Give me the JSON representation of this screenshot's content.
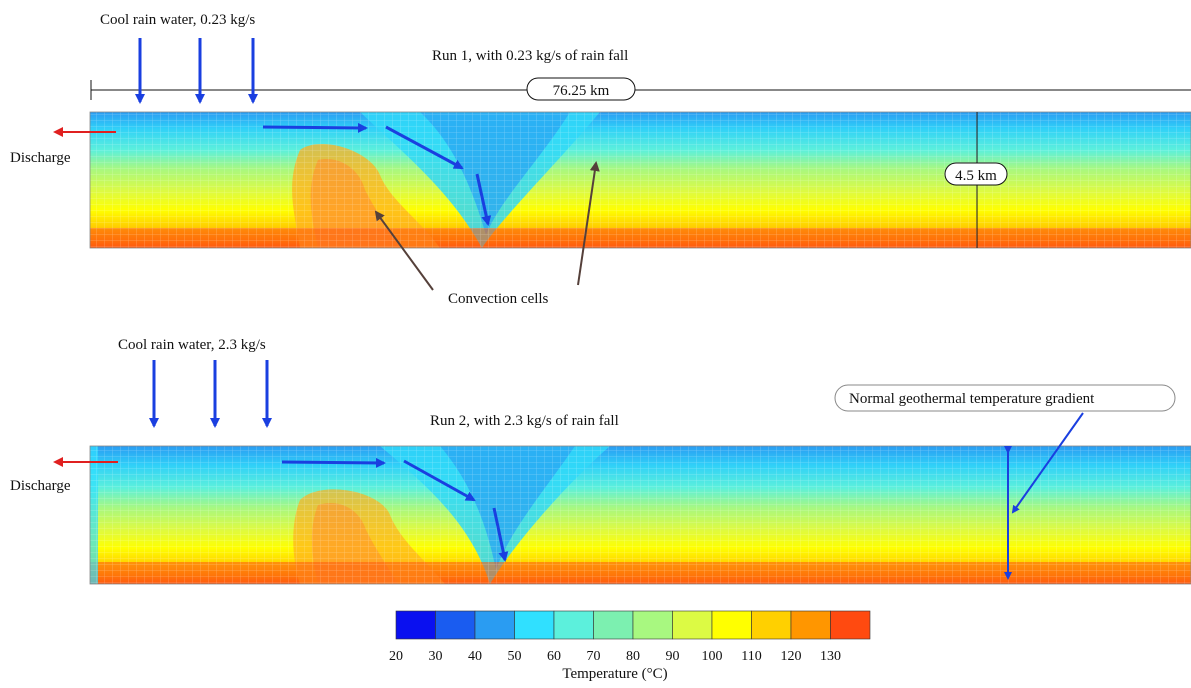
{
  "run1": {
    "title": "Run 1, with 0.23 kg/s of rain fall",
    "rain_label": "Cool rain water, 0.23 kg/s",
    "discharge_label": "Discharge",
    "width_label": "76.25 km",
    "depth_label": "4.5 km",
    "annotation": "Convection cells"
  },
  "run2": {
    "title": "Run 2, with 2.3 kg/s of rain fall",
    "rain_label": "Cool rain water, 2.3 kg/s",
    "discharge_label": "Discharge",
    "annotation": "Normal geothermal temperature gradient"
  },
  "legend": {
    "title": "Temperature (°C)",
    "ticks": [
      "20",
      "30",
      "40",
      "50",
      "60",
      "70",
      "80",
      "90",
      "100",
      "110",
      "120",
      "130"
    ],
    "colors": [
      "#0a10f0",
      "#1a5cf0",
      "#2a9cf2",
      "#30e0ff",
      "#5cf0dc",
      "#7cf0b0",
      "#a8f880",
      "#dcfa44",
      "#ffff00",
      "#ffd000",
      "#ff9600",
      "#ff4a10"
    ]
  },
  "colors": {
    "flow_arrow": "#1a3fe0",
    "discharge_arrow": "#e02020",
    "annotation_arrow": "#55403a",
    "grid_line": "#ffffff"
  }
}
